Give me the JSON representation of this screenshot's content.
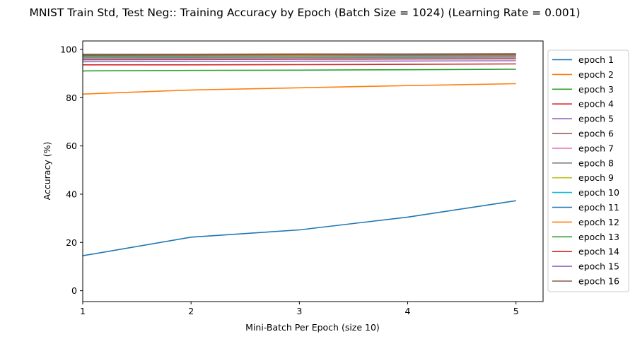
{
  "chart_data": {
    "type": "line",
    "title": "MNIST Train Std, Test Neg:: Training Accuracy by Epoch (Batch Size = 1024) (Learning Rate = 0.001)",
    "xlabel": "Mini-Batch Per Epoch (size 10)",
    "ylabel": "Accuracy (%)",
    "x": [
      1,
      2,
      3,
      4,
      5
    ],
    "xlim": [
      1,
      5.25
    ],
    "ylim": [
      -4.5,
      103.5
    ],
    "xticks": [
      1,
      2,
      3,
      4,
      5
    ],
    "yticks": [
      0,
      20,
      40,
      60,
      80,
      100
    ],
    "grid": false,
    "legend_position": "outside-right",
    "series": [
      {
        "name": "epoch 1",
        "color": "#1f77b4",
        "values": [
          14.5,
          22.2,
          25.2,
          30.5,
          37.3
        ]
      },
      {
        "name": "epoch 2",
        "color": "#ff7f0e",
        "values": [
          81.5,
          83.2,
          84.1,
          85.0,
          85.8
        ]
      },
      {
        "name": "epoch 3",
        "color": "#2ca02c",
        "values": [
          91.1,
          91.3,
          91.4,
          91.6,
          91.8
        ]
      },
      {
        "name": "epoch 4",
        "color": "#d62728",
        "values": [
          93.6,
          93.6,
          93.7,
          93.8,
          94.0
        ]
      },
      {
        "name": "epoch 5",
        "color": "#9467bd",
        "values": [
          94.9,
          95.0,
          95.1,
          95.2,
          95.3
        ]
      },
      {
        "name": "epoch 6",
        "color": "#8c564b",
        "values": [
          95.7,
          95.8,
          95.9,
          96.0,
          96.1
        ]
      },
      {
        "name": "epoch 7",
        "color": "#e377c2",
        "values": [
          96.2,
          96.3,
          96.4,
          96.5,
          96.5
        ]
      },
      {
        "name": "epoch 8",
        "color": "#7f7f7f",
        "values": [
          96.6,
          96.7,
          96.8,
          96.8,
          96.9
        ]
      },
      {
        "name": "epoch 9",
        "color": "#bcbd22",
        "values": [
          96.9,
          97.0,
          97.0,
          97.1,
          97.2
        ]
      },
      {
        "name": "epoch 10",
        "color": "#17becf",
        "values": [
          97.1,
          97.2,
          97.3,
          97.3,
          97.4
        ]
      },
      {
        "name": "epoch 11",
        "color": "#1f77b4",
        "values": [
          97.3,
          97.4,
          97.5,
          97.5,
          97.6
        ]
      },
      {
        "name": "epoch 12",
        "color": "#ff7f0e",
        "values": [
          97.5,
          97.6,
          97.6,
          97.7,
          97.7
        ]
      },
      {
        "name": "epoch 13",
        "color": "#2ca02c",
        "values": [
          97.6,
          97.7,
          97.8,
          97.8,
          97.9
        ]
      },
      {
        "name": "epoch 14",
        "color": "#d62728",
        "values": [
          97.8,
          97.8,
          97.9,
          97.9,
          98.0
        ]
      },
      {
        "name": "epoch 15",
        "color": "#9467bd",
        "values": [
          97.9,
          97.9,
          98.0,
          98.0,
          98.1
        ]
      },
      {
        "name": "epoch 16",
        "color": "#8c564b",
        "values": [
          98.0,
          98.0,
          98.1,
          98.1,
          98.2
        ]
      }
    ]
  }
}
